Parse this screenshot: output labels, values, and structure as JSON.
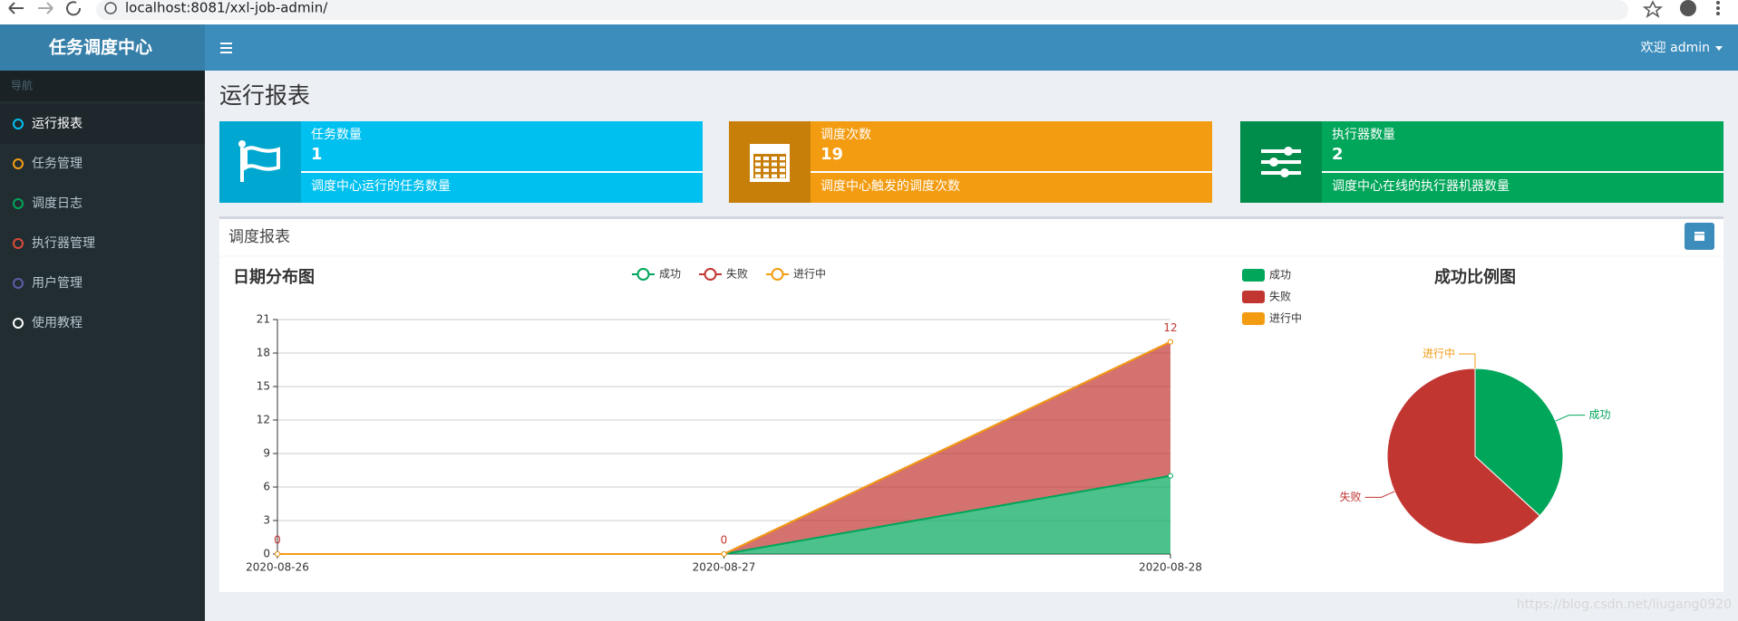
{
  "browser": {
    "url": "localhost:8081/xxl-job-admin/"
  },
  "header": {
    "brand": "任务调度中心",
    "user": "欢迎 admin"
  },
  "sidebar": {
    "section": "导航",
    "items": [
      {
        "label": "运行报表",
        "color": "#00c0ef"
      },
      {
        "label": "任务管理",
        "color": "#f39c12"
      },
      {
        "label": "调度日志",
        "color": "#00a65a"
      },
      {
        "label": "执行器管理",
        "color": "#dd4b39"
      },
      {
        "label": "用户管理",
        "color": "#605ca8"
      },
      {
        "label": "使用教程",
        "color": "#ffffff"
      }
    ]
  },
  "page": {
    "title": "运行报表"
  },
  "info_boxes": [
    {
      "title": "任务数量",
      "value": 1,
      "desc": "调度中心运行的任务数量",
      "color": "#00c0ef",
      "icon_color": "#00a7d0"
    },
    {
      "title": "调度次数",
      "value": 19,
      "desc": "调度中心触发的调度次数",
      "color": "#f39c12",
      "icon_color": "#c87f0a"
    },
    {
      "title": "执行器数量",
      "value": 2,
      "desc": "调度中心在线的执行器机器数量",
      "color": "#00a65a",
      "icon_color": "#008d4c"
    }
  ],
  "panel": {
    "title": "调度报表"
  },
  "chart_data": [
    {
      "type": "line",
      "title": "日期分布图",
      "stacked": true,
      "area": true,
      "grid": true,
      "legend": "top",
      "categories": [
        "2020-08-26",
        "2020-08-27",
        "2020-08-28"
      ],
      "series": [
        {
          "name": "成功",
          "color": "#00A65A",
          "values": [
            0,
            0,
            7
          ]
        },
        {
          "name": "失败",
          "color": "#c23632",
          "values": [
            0,
            0,
            12
          ],
          "show_labels": true
        },
        {
          "name": "进行中",
          "color": "#F39C12",
          "values": [
            0,
            0,
            0
          ]
        }
      ],
      "ylim": [
        0,
        21
      ],
      "yticks": [
        0,
        3,
        6,
        9,
        12,
        15,
        18,
        21
      ]
    },
    {
      "type": "pie",
      "title": "成功比例图",
      "legend": "left",
      "categories": [
        "成功",
        "失败",
        "进行中"
      ],
      "values": [
        7,
        12,
        0
      ],
      "colors": [
        "#00A65A",
        "#c23632",
        "#F39C12"
      ]
    }
  ],
  "watermark": "https://blog.csdn.net/liugang0920"
}
